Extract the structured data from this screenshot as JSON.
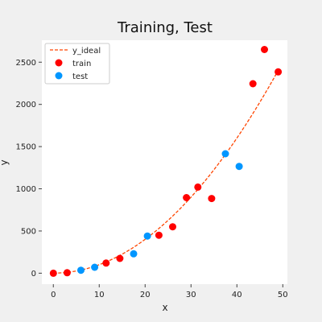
{
  "chart_data": {
    "type": "scatter",
    "title": "Training, Test",
    "xlabel": "x",
    "ylabel": "y",
    "xlim": [
      -2.5,
      51
    ],
    "ylim": [
      -130,
      2760
    ],
    "xticks": [
      0,
      10,
      20,
      30,
      40,
      50
    ],
    "yticks": [
      0,
      500,
      1000,
      1500,
      2000,
      2500
    ],
    "grid": false,
    "legend": "top-left",
    "ideal": {
      "name": "y_ideal",
      "color": "#ff4500",
      "style": "dashed",
      "formula": "y = 1 + x^2",
      "x_range": [
        0,
        49
      ]
    },
    "series": [
      {
        "name": "train",
        "color": "#ff0000",
        "x": [
          0,
          3,
          11.5,
          14.5,
          23,
          26,
          29,
          31.5,
          34.5,
          43.5,
          46,
          49
        ],
        "y": [
          0,
          5,
          120,
          175,
          450,
          550,
          895,
          1020,
          885,
          2245,
          2650,
          2385
        ]
      },
      {
        "name": "test",
        "color": "#0096ff",
        "x": [
          6,
          9,
          17.5,
          20.5,
          37.5,
          40.5
        ],
        "y": [
          35,
          70,
          230,
          440,
          1415,
          1265
        ]
      }
    ]
  }
}
